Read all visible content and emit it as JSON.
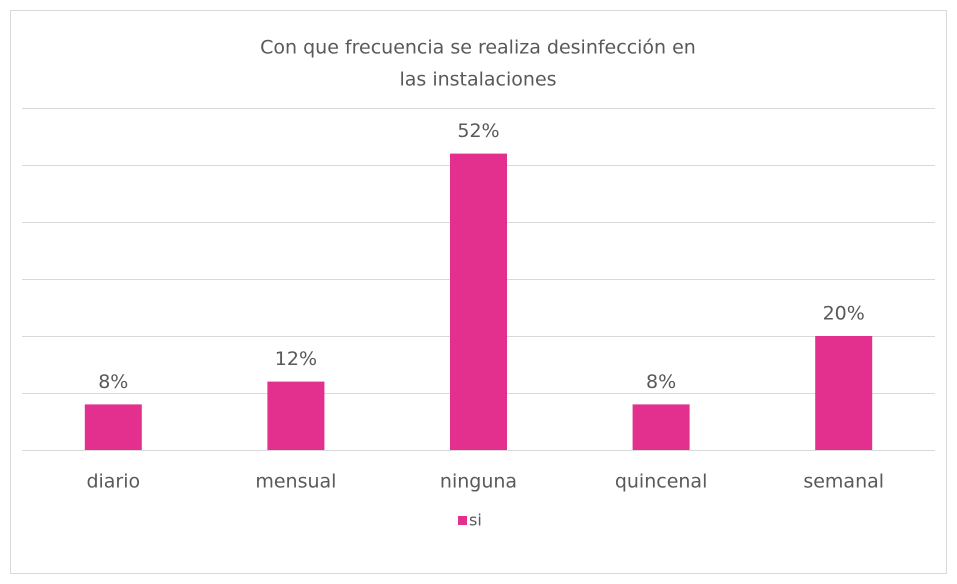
{
  "chart_data": {
    "type": "bar",
    "title": [
      "Con que frecuencia se realiza desinfección en",
      "las instalaciones"
    ],
    "categories": [
      "diario",
      "mensual",
      "ninguna",
      "quincenal",
      "semanal"
    ],
    "series": [
      {
        "name": "si",
        "color": "#e32f8e",
        "values": [
          8,
          12,
          52,
          8,
          20
        ],
        "value_labels": [
          "8%",
          "12%",
          "52%",
          "8%",
          "20%"
        ]
      }
    ],
    "ylim": [
      0,
      60
    ],
    "yticks": [
      0,
      10,
      20,
      30,
      40,
      50,
      60
    ],
    "grid": true,
    "legend": "bottom"
  }
}
